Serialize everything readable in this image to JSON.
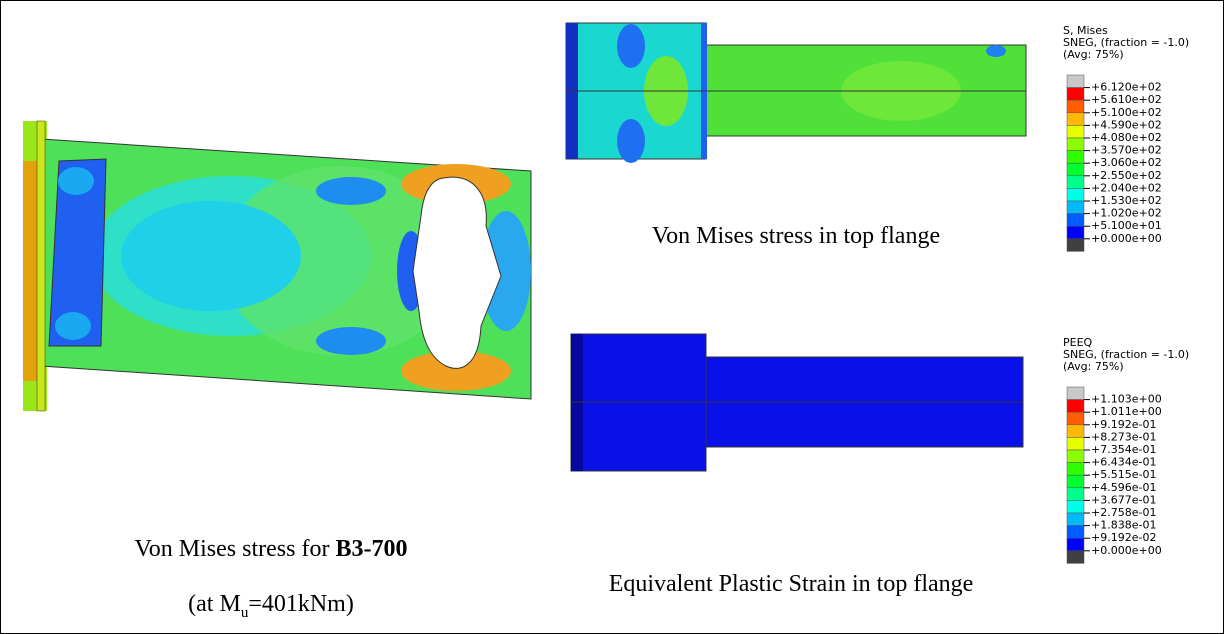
{
  "left_panel": {
    "caption": "Von Mises stress for ",
    "caption_bold": "B3-700",
    "subcaption_start": "(at M",
    "subcaption_subscript": "u",
    "subcaption_end": "=401kNm)"
  },
  "top_right_panel": {
    "caption": "Von Mises stress in top flange",
    "legend": {
      "title_lines": [
        "S, Mises",
        "SNEG, (fraction = -1.0)",
        "(Avg: 75%)"
      ],
      "labels": [
        "+6.120e+02",
        "+5.610e+02",
        "+5.100e+02",
        "+4.590e+02",
        "+4.080e+02",
        "+3.570e+02",
        "+3.060e+02",
        "+2.550e+02",
        "+2.040e+02",
        "+1.530e+02",
        "+1.020e+02",
        "+5.100e+01",
        "+0.000e+00"
      ]
    }
  },
  "bottom_right_panel": {
    "caption": "Equivalent Plastic Strain in top flange",
    "legend": {
      "title_lines": [
        "PEEQ",
        "SNEG, (fraction = -1.0)",
        "(Avg: 75%)"
      ],
      "labels": [
        "+1.103e+00",
        "+1.011e+00",
        "+9.192e-01",
        "+8.273e-01",
        "+7.354e-01",
        "+6.434e-01",
        "+5.515e-01",
        "+4.596e-01",
        "+3.677e-01",
        "+2.758e-01",
        "+1.838e-01",
        "+9.192e-02",
        "+0.000e+00"
      ]
    }
  }
}
